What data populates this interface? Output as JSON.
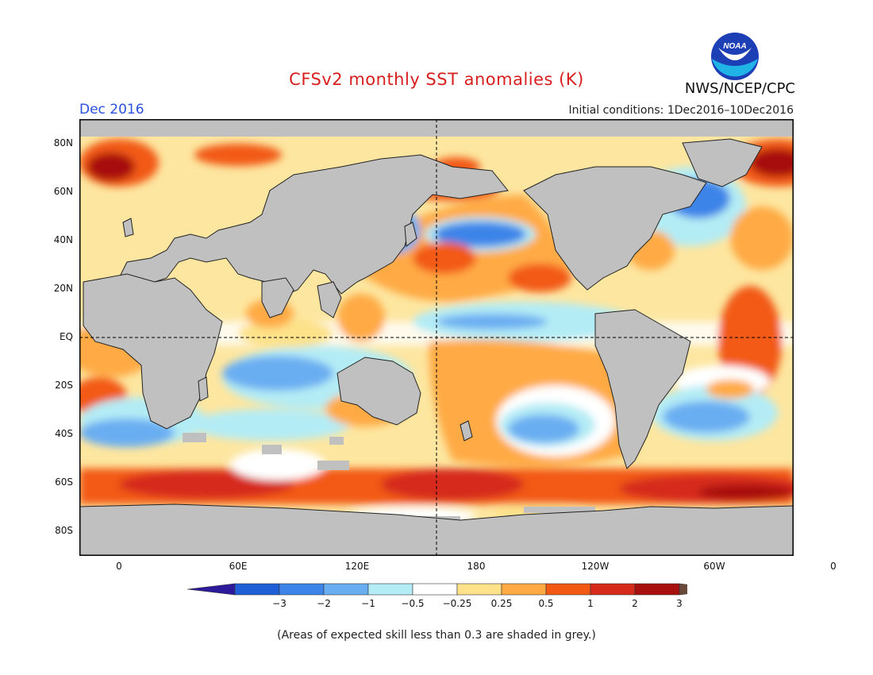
{
  "header": {
    "title": "CFSv2 monthly SST anomalies (K)",
    "organization": "NWS/NCEP/CPC",
    "logo_text": "NOAA",
    "forecast_month": "Dec 2016",
    "initial_conditions": "Initial conditions: 1Dec2016–10Dec2016"
  },
  "map": {
    "projection": "plate-carree",
    "lon_range": [
      -20,
      340
    ],
    "lat_range": [
      -90,
      90
    ],
    "center_meridian_label": "180",
    "land_color": "#c0c0c0",
    "lat_ticks": [
      {
        "value": 80,
        "label": "80N"
      },
      {
        "value": 60,
        "label": "60N"
      },
      {
        "value": 40,
        "label": "40N"
      },
      {
        "value": 20,
        "label": "20N"
      },
      {
        "value": 0,
        "label": "EQ"
      },
      {
        "value": -20,
        "label": "20S"
      },
      {
        "value": -40,
        "label": "40S"
      },
      {
        "value": -60,
        "label": "60S"
      },
      {
        "value": -80,
        "label": "80S"
      }
    ],
    "lon_ticks": [
      {
        "value": 0,
        "label": "0"
      },
      {
        "value": 60,
        "label": "60E"
      },
      {
        "value": 120,
        "label": "120E"
      },
      {
        "value": 180,
        "label": "180"
      },
      {
        "value": 240,
        "label": "120W"
      },
      {
        "value": 300,
        "label": "60W"
      },
      {
        "value": 360,
        "label": "0"
      }
    ]
  },
  "colorbar": {
    "labels": [
      "−3",
      "−2",
      "−1",
      "−0.5",
      "−0.25",
      "0.25",
      "0.5",
      "1",
      "2",
      "3"
    ],
    "colors": [
      "#2c1a9c",
      "#1f5fd6",
      "#3c84e8",
      "#6aaef2",
      "#b4ecf5",
      "#ffffff",
      "#fde28a",
      "#ffaa44",
      "#f25a14",
      "#d62a1a",
      "#a8100e",
      "#6b4a3c"
    ]
  },
  "footnote": "(Areas of expected skill less than 0.3 are shaded in grey.)"
}
